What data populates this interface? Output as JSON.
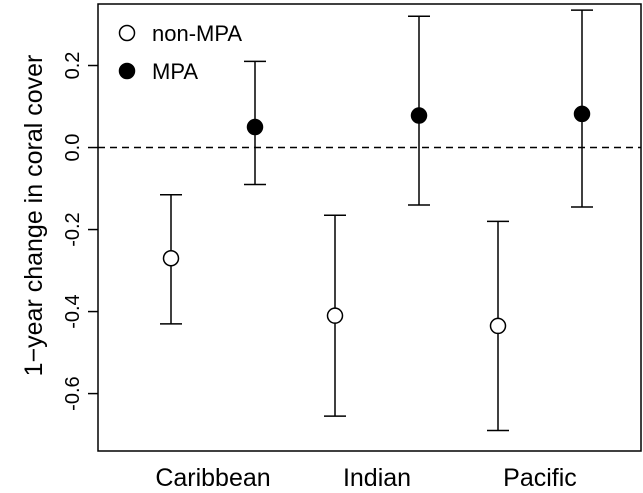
{
  "chart_data": {
    "type": "scatter",
    "subtype": "point-with-error-bars",
    "title": "",
    "xlabel": "",
    "ylabel": "1−year change in coral cover",
    "categories": [
      "Caribbean",
      "Indian",
      "Pacific"
    ],
    "ylim": [
      -0.74,
      0.35
    ],
    "yticks": [
      -0.6,
      -0.4,
      -0.2,
      0.0,
      0.2
    ],
    "ytick_labels": [
      "-0.6",
      "-0.4",
      "-0.2",
      "0.0",
      "0.2"
    ],
    "reference_line": {
      "y": 0.0,
      "style": "dashed"
    },
    "grid": false,
    "legend": {
      "position": "top-left",
      "marker_style": "circle"
    },
    "series": [
      {
        "name": "non-MPA",
        "marker": "open-circle",
        "values": [
          -0.27,
          -0.41,
          -0.435
        ],
        "lower": [
          -0.43,
          -0.655,
          -0.69
        ],
        "upper": [
          -0.115,
          -0.165,
          -0.18
        ]
      },
      {
        "name": "MPA",
        "marker": "filled-circle",
        "values": [
          0.05,
          0.078,
          0.082
        ],
        "lower": [
          -0.09,
          -0.14,
          -0.145
        ],
        "upper": [
          0.21,
          0.32,
          0.335
        ]
      }
    ]
  },
  "colors": {
    "ink": "#000000",
    "background": "#ffffff"
  }
}
